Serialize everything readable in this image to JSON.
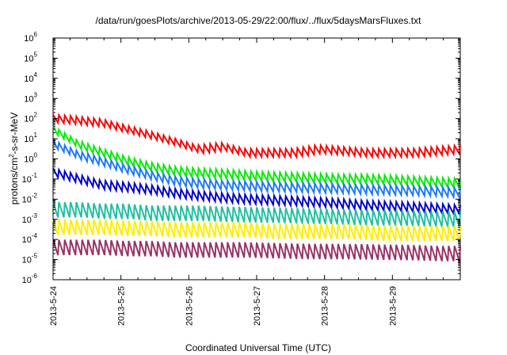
{
  "chart_data": {
    "type": "line",
    "title": "/data/run/goesPlots/archive/2013-05-29/22:00/flux/../flux/5daysMarsFluxes.txt",
    "xlabel": "Coordinated Universal Time (UTC)",
    "ylabel": {
      "base": "protons/cm",
      "sup": "2",
      "rest": "-s-sr-MeV"
    },
    "x_ticks": [
      "2013-5-24",
      "2013-5-25",
      "2013-5-26",
      "2013-5-27",
      "2013-5-28",
      "2013-5-29"
    ],
    "x_range_days": [
      0,
      6.0
    ],
    "y_scale": "log",
    "y_range_exp": [
      -6,
      6
    ],
    "y_ticks": [
      {
        "base": "10",
        "exp": "-6"
      },
      {
        "base": "10",
        "exp": "-5"
      },
      {
        "base": "10",
        "exp": "-4"
      },
      {
        "base": "10",
        "exp": "-3"
      },
      {
        "base": "10",
        "exp": "-2"
      },
      {
        "base": "10",
        "exp": "-1"
      },
      {
        "base": "10",
        "exp": "0"
      },
      {
        "base": "10",
        "exp": "1"
      },
      {
        "base": "10",
        "exp": "2"
      },
      {
        "base": "10",
        "exp": "3"
      },
      {
        "base": "10",
        "exp": "4"
      },
      {
        "base": "10",
        "exp": "5"
      },
      {
        "base": "10",
        "exp": "6"
      }
    ],
    "grid": false,
    "legend": "none",
    "series": [
      {
        "color": "#ff0000",
        "values": [
          100,
          80,
          60,
          30,
          15,
          7,
          3,
          4,
          2,
          2,
          2,
          3,
          2.5,
          2,
          2,
          2,
          2.5,
          3
        ]
      },
      {
        "color": "#00ee00",
        "values": [
          25,
          5,
          2,
          0.8,
          0.4,
          0.25,
          0.2,
          0.18,
          0.15,
          0.13,
          0.12,
          0.11,
          0.1,
          0.1,
          0.09,
          0.08,
          0.07,
          0.06
        ]
      },
      {
        "color": "#1e78ff",
        "values": [
          5,
          1.5,
          0.7,
          0.3,
          0.15,
          0.08,
          0.06,
          0.05,
          0.045,
          0.04,
          0.038,
          0.035,
          0.033,
          0.03,
          0.028,
          0.026,
          0.024,
          0.02
        ]
      },
      {
        "color": "#0000cc",
        "values": [
          0.2,
          0.1,
          0.05,
          0.04,
          0.03,
          0.02,
          0.015,
          0.012,
          0.01,
          0.009,
          0.008,
          0.007,
          0.006,
          0.005,
          0.0045,
          0.004,
          0.0035,
          0.003
        ]
      },
      {
        "color": "#20c0a0",
        "values": [
          0.003,
          0.003,
          0.0025,
          0.0025,
          0.002,
          0.002,
          0.002,
          0.0018,
          0.0017,
          0.0016,
          0.0015,
          0.0014,
          0.0013,
          0.0012,
          0.0012,
          0.0011,
          0.001,
          0.001
        ]
      },
      {
        "color": "#ffee00",
        "values": [
          0.0004,
          0.0004,
          0.0004,
          0.00035,
          0.00035,
          0.0003,
          0.0003,
          0.0003,
          0.0003,
          0.00025,
          0.00025,
          0.00025,
          0.00025,
          0.00022,
          0.0002,
          0.0002,
          0.0002,
          0.0002
        ]
      },
      {
        "color": "#993366",
        "values": [
          4e-05,
          4e-05,
          4e-05,
          3.5e-05,
          3.5e-05,
          3e-05,
          3e-05,
          3e-05,
          3e-05,
          2.8e-05,
          2.6e-05,
          2.5e-05,
          2.5e-05,
          2.4e-05,
          2.3e-05,
          2.2e-05,
          2e-05,
          2e-05
        ]
      }
    ]
  }
}
